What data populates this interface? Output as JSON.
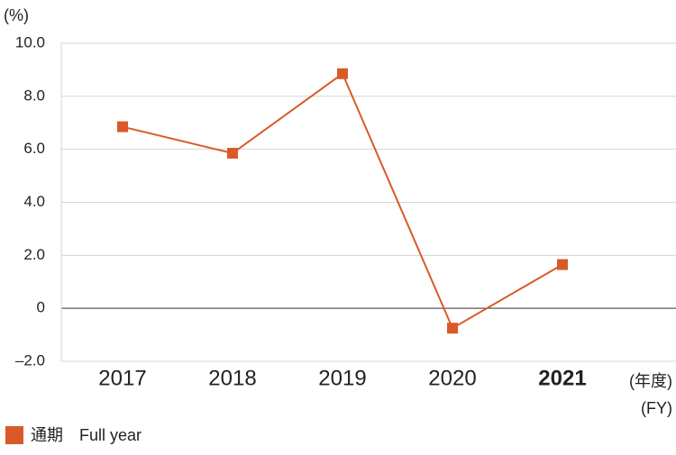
{
  "chart_data": {
    "type": "line",
    "y_label": "(%)",
    "x_label": "(年度)",
    "x_label_en": "(FY)",
    "categories": [
      "2017",
      "2018",
      "2019",
      "2020",
      "2021"
    ],
    "bold_last_category": true,
    "series": [
      {
        "name": "通期　Full year",
        "color": "#d95a28",
        "values": [
          6.85,
          5.85,
          8.85,
          -0.75,
          1.65
        ]
      }
    ],
    "ylim": [
      -2,
      10
    ],
    "yticks": [
      {
        "value": -2,
        "label": "–2.0"
      },
      0,
      {
        "value": 2,
        "label": "2.0"
      },
      {
        "value": 4,
        "label": "4.0"
      },
      {
        "value": 6,
        "label": "6.0"
      },
      {
        "value": 8,
        "label": "8.0"
      },
      {
        "value": 10,
        "label": "10.0"
      }
    ],
    "grid": true,
    "legend": "bottom-left"
  }
}
